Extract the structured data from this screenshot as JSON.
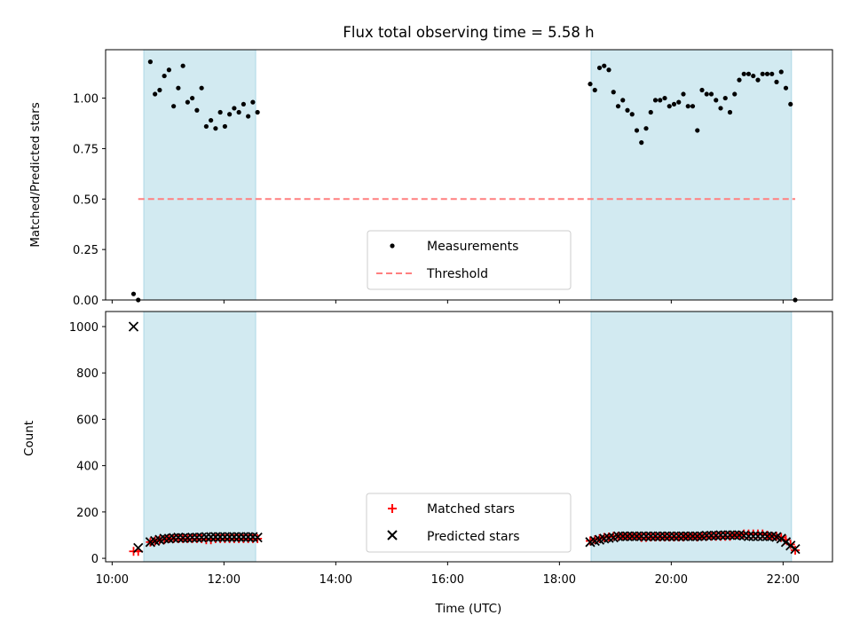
{
  "chart_data": [
    {
      "panel": "top",
      "type": "scatter",
      "title": "Flux total observing time = 5.58 h",
      "ylabel": "Matched/Predicted stars",
      "xlabel": "",
      "ylim": [
        0,
        1.24
      ],
      "yticks": [
        "0.00",
        "0.25",
        "0.50",
        "0.75",
        "1.00"
      ],
      "threshold": 0.5,
      "threshold_range": [
        "10:28",
        "22:13"
      ],
      "observing_windows": [
        [
          "10:34",
          "12:34"
        ],
        [
          "18:34",
          "22:09"
        ]
      ],
      "legend": {
        "position": "lower center",
        "entries": [
          "Measurements",
          "Threshold"
        ]
      },
      "colors": {
        "measurements": "#000000",
        "threshold": "#ff7f7f",
        "window": "#add8e6"
      },
      "series": [
        {
          "name": "Measurements",
          "x": [
            "10:23",
            "10:28",
            "10:41",
            "10:46",
            "10:51",
            "10:56",
            "11:01",
            "11:06",
            "11:11",
            "11:16",
            "11:21",
            "11:26",
            "11:31",
            "11:36",
            "11:41",
            "11:46",
            "11:51",
            "11:56",
            "12:01",
            "12:06",
            "12:11",
            "12:16",
            "12:21",
            "12:26",
            "12:31",
            "12:36",
            "18:33",
            "18:38",
            "18:43",
            "18:48",
            "18:53",
            "18:58",
            "19:03",
            "19:08",
            "19:13",
            "19:18",
            "19:23",
            "19:28",
            "19:33",
            "19:38",
            "19:43",
            "19:48",
            "19:53",
            "19:58",
            "20:03",
            "20:08",
            "20:13",
            "20:18",
            "20:23",
            "20:28",
            "20:33",
            "20:38",
            "20:43",
            "20:48",
            "20:53",
            "20:58",
            "21:03",
            "21:08",
            "21:13",
            "21:18",
            "21:23",
            "21:28",
            "21:33",
            "21:38",
            "21:43",
            "21:48",
            "21:53",
            "21:58",
            "22:03",
            "22:08",
            "22:13"
          ],
          "y": [
            0.03,
            0.0,
            1.18,
            1.02,
            1.04,
            1.11,
            1.14,
            0.96,
            1.05,
            1.16,
            0.98,
            1.0,
            0.94,
            1.05,
            0.86,
            0.89,
            0.85,
            0.93,
            0.86,
            0.92,
            0.95,
            0.93,
            0.97,
            0.91,
            0.98,
            0.93,
            1.07,
            1.04,
            1.15,
            1.16,
            1.14,
            1.03,
            0.96,
            0.99,
            0.94,
            0.92,
            0.84,
            0.78,
            0.85,
            0.93,
            0.99,
            0.99,
            1.0,
            0.96,
            0.97,
            0.98,
            1.02,
            0.96,
            0.96,
            0.84,
            1.04,
            1.02,
            1.02,
            0.99,
            0.95,
            1.0,
            0.93,
            1.02,
            1.09,
            1.12,
            1.12,
            1.11,
            1.09,
            1.12,
            1.12,
            1.12,
            1.08,
            1.13,
            1.05,
            0.97,
            0.0
          ]
        }
      ]
    },
    {
      "panel": "bottom",
      "type": "scatter",
      "title": "",
      "ylabel": "Count",
      "xlabel": "Time (UTC)",
      "ylim": [
        -15,
        1065
      ],
      "yticks": [
        "0",
        "200",
        "400",
        "600",
        "800",
        "1000"
      ],
      "xticks": [
        "10:00",
        "12:00",
        "14:00",
        "16:00",
        "18:00",
        "20:00",
        "22:00"
      ],
      "xlim": [
        "09:53",
        "22:53"
      ],
      "legend": {
        "position": "lower center",
        "entries": [
          "Matched stars",
          "Predicted stars"
        ]
      },
      "colors": {
        "matched": "#ff0000",
        "predicted": "#000000",
        "window": "#add8e6"
      },
      "series": [
        {
          "name": "Matched stars",
          "x": [
            "10:23",
            "10:28",
            "10:41",
            "10:46",
            "10:51",
            "10:56",
            "11:01",
            "11:06",
            "11:11",
            "11:16",
            "11:21",
            "11:26",
            "11:31",
            "11:36",
            "11:41",
            "11:46",
            "11:51",
            "11:56",
            "12:01",
            "12:06",
            "12:11",
            "12:16",
            "12:21",
            "12:26",
            "12:31",
            "12:36",
            "18:33",
            "18:38",
            "18:43",
            "18:48",
            "18:53",
            "18:58",
            "19:03",
            "19:08",
            "19:13",
            "19:18",
            "19:23",
            "19:28",
            "19:33",
            "19:38",
            "19:43",
            "19:48",
            "19:53",
            "19:58",
            "20:03",
            "20:08",
            "20:13",
            "20:18",
            "20:23",
            "20:28",
            "20:33",
            "20:38",
            "20:43",
            "20:48",
            "20:53",
            "20:58",
            "21:03",
            "21:08",
            "21:13",
            "21:18",
            "21:23",
            "21:28",
            "21:33",
            "21:38",
            "21:43",
            "21:48",
            "21:53",
            "21:58",
            "22:03",
            "22:08",
            "22:13"
          ],
          "y": [
            30,
            30,
            70,
            75,
            80,
            80,
            85,
            85,
            85,
            85,
            85,
            85,
            85,
            85,
            80,
            80,
            85,
            85,
            85,
            85,
            85,
            85,
            85,
            85,
            85,
            85,
            75,
            80,
            85,
            90,
            92,
            95,
            95,
            95,
            95,
            95,
            95,
            90,
            90,
            92,
            92,
            92,
            92,
            92,
            92,
            92,
            92,
            95,
            95,
            92,
            95,
            95,
            95,
            95,
            95,
            95,
            95,
            100,
            100,
            105,
            105,
            105,
            105,
            105,
            100,
            95,
            95,
            90,
            80,
            60,
            35
          ]
        },
        {
          "name": "Predicted stars",
          "x": [
            "10:23",
            "10:28",
            "10:41",
            "10:46",
            "10:51",
            "10:56",
            "11:01",
            "11:06",
            "11:11",
            "11:16",
            "11:21",
            "11:26",
            "11:31",
            "11:36",
            "11:41",
            "11:46",
            "11:51",
            "11:56",
            "12:01",
            "12:06",
            "12:11",
            "12:16",
            "12:21",
            "12:26",
            "12:31",
            "12:36",
            "18:33",
            "18:38",
            "18:43",
            "18:48",
            "18:53",
            "18:58",
            "19:03",
            "19:08",
            "19:13",
            "19:18",
            "19:23",
            "19:28",
            "19:33",
            "19:38",
            "19:43",
            "19:48",
            "19:53",
            "19:58",
            "20:03",
            "20:08",
            "20:13",
            "20:18",
            "20:23",
            "20:28",
            "20:33",
            "20:38",
            "20:43",
            "20:48",
            "20:53",
            "20:58",
            "21:03",
            "21:08",
            "21:13",
            "21:18",
            "21:23",
            "21:28",
            "21:33",
            "21:38",
            "21:43",
            "21:48",
            "21:53",
            "21:58",
            "22:03",
            "22:08",
            "22:13"
          ],
          "y": [
            1000,
            45,
            70,
            75,
            80,
            85,
            85,
            88,
            90,
            88,
            88,
            90,
            90,
            90,
            92,
            92,
            92,
            92,
            92,
            92,
            92,
            92,
            92,
            92,
            92,
            90,
            70,
            75,
            80,
            85,
            88,
            90,
            95,
            95,
            95,
            95,
            95,
            95,
            95,
            95,
            95,
            95,
            95,
            95,
            95,
            95,
            95,
            95,
            95,
            95,
            95,
            98,
            98,
            98,
            100,
            100,
            100,
            100,
            100,
            98,
            95,
            95,
            95,
            95,
            95,
            95,
            92,
            85,
            70,
            55,
            40
          ]
        }
      ]
    }
  ]
}
